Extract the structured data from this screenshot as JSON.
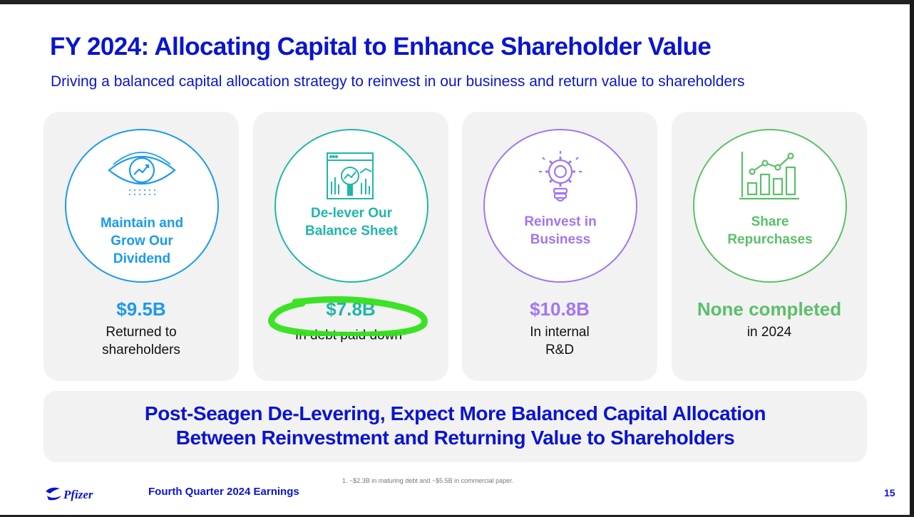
{
  "slide": {
    "title": "FY 2024: Allocating Capital to Enhance Shareholder Value",
    "subtitle": "Driving a balanced capital allocation strategy to reinvest in our business and return value to shareholders"
  },
  "cards": [
    {
      "icon": "eye-chart-icon",
      "label_lines": [
        "Maintain and",
        "Grow Our",
        "Dividend"
      ],
      "value": "$9.5B",
      "desc_lines": [
        "Returned to",
        "shareholders"
      ],
      "color": "#1a9aee"
    },
    {
      "icon": "analytics-magnifier-icon",
      "label_lines": [
        "De-lever Our",
        "Balance Sheet"
      ],
      "value": "$7.8B",
      "desc": "In debt paid down",
      "desc_sup": "1",
      "color": "#1fb7a8"
    },
    {
      "icon": "gear-lightbulb-icon",
      "label_lines": [
        "Reinvest in",
        "Business"
      ],
      "value": "$10.8B",
      "desc_lines": [
        "In internal",
        "R&D"
      ],
      "color": "#a176f2"
    },
    {
      "icon": "growth-bar-chart-icon",
      "label_lines": [
        "Share",
        "Repurchases"
      ],
      "value": "None completed",
      "desc_lines": [
        "in 2024"
      ],
      "color": "#5cbf6a"
    }
  ],
  "banner": {
    "line1": "Post-Seagen De-Levering, Expect More Balanced Capital Allocation",
    "line2": "Between Reinvestment and Returning Value to Shareholders"
  },
  "footer": {
    "logo_text": "Pfizer",
    "title": "Fourth Quarter 2024 Earnings",
    "footnote": "1. ~$2.3B in maturing debt and ~$5.5B in commercial paper.",
    "page_number": "15"
  },
  "annotation": {
    "highlight_color": "#33e01a"
  },
  "colors": {
    "primary": "#0a14d0",
    "card_bg": "#f2f2f2"
  }
}
